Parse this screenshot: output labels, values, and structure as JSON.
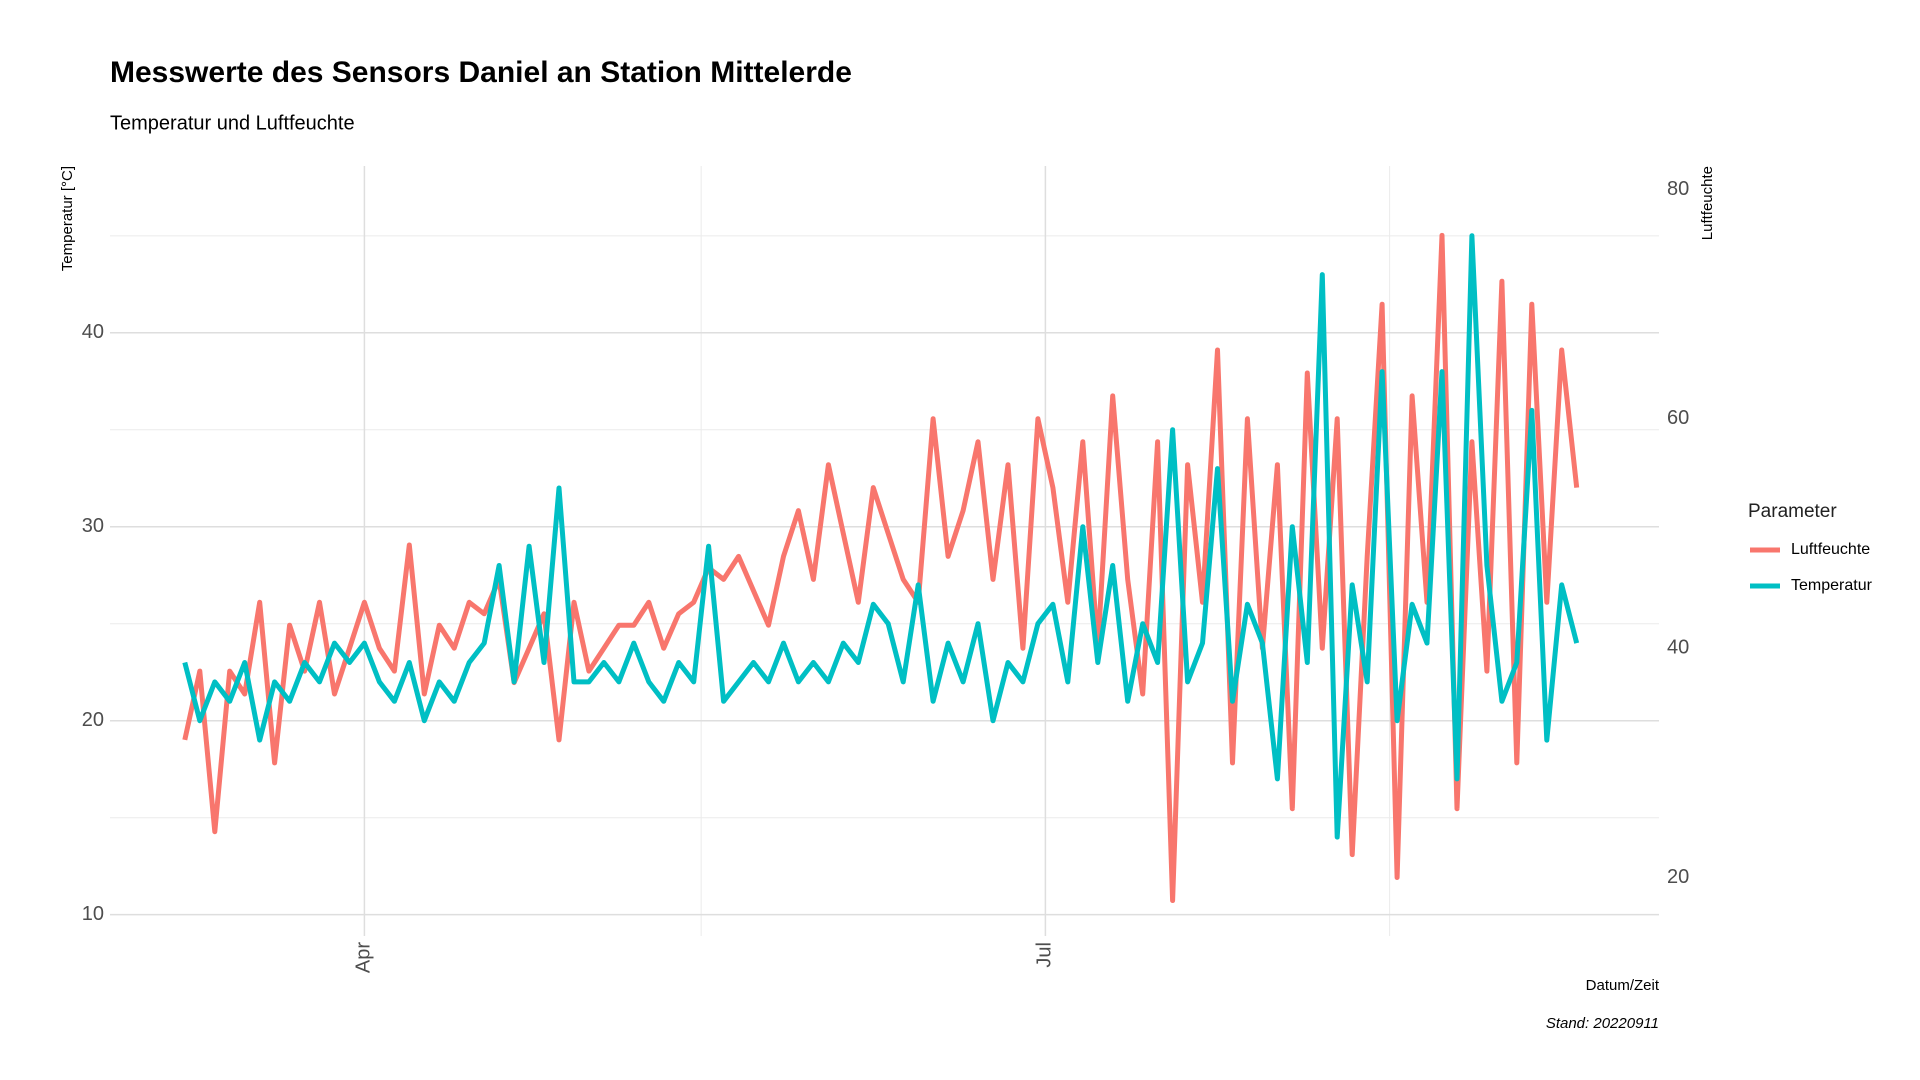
{
  "chart_data": {
    "type": "line",
    "title": "Messwerte des Sensors Daniel an Station Mittelerde",
    "subtitle": "Temperatur und Luftfeuchte",
    "y_label": "Temperatur [°C]",
    "y2_label": "Luftfeuchte",
    "x_label": "Datum/Zeit",
    "caption": "Stand: 20220911",
    "legend_title": "Parameter",
    "legend": "right",
    "grid": true,
    "x": [
      "03-08",
      "03-10",
      "03-12",
      "03-14",
      "03-16",
      "03-18",
      "03-20",
      "03-22",
      "03-24",
      "03-26",
      "03-28",
      "03-30",
      "04-01",
      "04-03",
      "04-05",
      "04-07",
      "04-09",
      "04-11",
      "04-13",
      "04-15",
      "04-17",
      "04-19",
      "04-21",
      "04-23",
      "04-25",
      "04-27",
      "04-29",
      "05-01",
      "05-03",
      "05-05",
      "05-07",
      "05-09",
      "05-11",
      "05-13",
      "05-15",
      "05-17",
      "05-19",
      "05-21",
      "05-23",
      "05-25",
      "05-27",
      "05-29",
      "05-31",
      "06-02",
      "06-04",
      "06-06",
      "06-08",
      "06-10",
      "06-12",
      "06-14",
      "06-16",
      "06-18",
      "06-20",
      "06-22",
      "06-24",
      "06-26",
      "06-28",
      "06-30",
      "07-02",
      "07-04",
      "07-06",
      "07-08",
      "07-10",
      "07-12",
      "07-14",
      "07-16",
      "07-18",
      "07-20",
      "07-22",
      "07-24",
      "07-26",
      "07-28",
      "07-30",
      "08-01",
      "08-03",
      "08-05",
      "08-07",
      "08-09",
      "08-11",
      "08-13",
      "08-15",
      "08-17",
      "08-19",
      "08-21",
      "08-23",
      "08-25",
      "08-27",
      "08-29",
      "08-31",
      "09-02",
      "09-04",
      "09-06",
      "09-08",
      "09-10"
    ],
    "xlim": [
      "02-27",
      "09-21"
    ],
    "xticks": [
      {
        "value": "04-01",
        "label": "Apr"
      },
      {
        "value": "07-01",
        "label": "Jul"
      }
    ],
    "xminor": [
      "05-16",
      "08-16"
    ],
    "ylim": [
      8.9,
      48.6
    ],
    "yticks": [
      10,
      20,
      30,
      40
    ],
    "yminor": [
      15,
      25,
      35,
      45
    ],
    "y2lim": [
      14.9,
      82.05
    ],
    "y2ticks": [
      20,
      40,
      60,
      80
    ],
    "series": [
      {
        "name": "Luftfeuchte",
        "color": "#F8766D",
        "axis": "y2",
        "values": [
          32,
          38,
          24,
          38,
          36,
          44,
          30,
          42,
          38,
          44,
          36,
          40,
          44,
          40,
          38,
          49,
          36,
          42,
          40,
          44,
          43,
          46,
          37,
          40,
          43,
          32,
          44,
          38,
          40,
          42,
          42,
          44,
          40,
          43,
          44,
          47,
          46,
          48,
          45,
          42,
          48,
          52,
          46,
          56,
          50,
          44,
          54,
          50,
          46,
          44,
          60,
          48,
          52,
          58,
          46,
          56,
          40,
          60,
          54,
          44,
          58,
          40,
          62,
          46,
          36,
          58,
          18,
          56,
          44,
          66,
          30,
          60,
          40,
          56,
          26,
          64,
          40,
          60,
          22,
          48,
          70,
          20,
          62,
          44,
          76,
          26,
          58,
          38,
          72,
          30,
          70,
          44,
          66,
          54
        ]
      },
      {
        "name": "Temperatur",
        "color": "#00BFC4",
        "values": [
          23,
          20,
          22,
          21,
          23,
          19,
          22,
          21,
          23,
          22,
          24,
          23,
          24,
          22,
          21,
          23,
          20,
          22,
          21,
          23,
          24,
          28,
          22,
          29,
          23,
          32,
          22,
          22,
          23,
          22,
          24,
          22,
          21,
          23,
          22,
          29,
          21,
          22,
          23,
          22,
          24,
          22,
          23,
          22,
          24,
          23,
          26,
          25,
          22,
          27,
          21,
          24,
          22,
          25,
          20,
          23,
          22,
          25,
          26,
          22,
          30,
          23,
          28,
          21,
          25,
          23,
          35,
          22,
          24,
          33,
          21,
          26,
          24,
          17,
          30,
          23,
          43,
          14,
          27,
          22,
          38,
          20,
          26,
          24,
          38,
          17,
          45,
          28,
          21,
          23,
          36,
          19,
          27,
          24
        ]
      }
    ]
  }
}
